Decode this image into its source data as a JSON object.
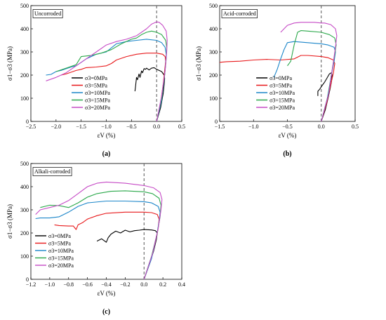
{
  "chart_data": [
    {
      "type": "line",
      "panel_label": "(a)",
      "annotation": "Uncorroded",
      "xlabel": "εV (%)",
      "ylabel": "σ1−σ3 (MPa)",
      "xlim": [
        -2.5,
        0.5
      ],
      "ylim": [
        0,
        500
      ],
      "xticks": [
        "−2.5",
        "−2.0",
        "−1.5",
        "−1.0",
        "−0.5",
        "0.0",
        "0.5"
      ],
      "xtick_values": [
        -2.5,
        -2.0,
        -1.5,
        -1.0,
        -0.5,
        0.0,
        0.5
      ],
      "yticks": [
        "0",
        "100",
        "200",
        "300",
        "400",
        "500"
      ],
      "ytick_values": [
        0,
        100,
        200,
        300,
        400,
        500
      ],
      "reference_line_x": 0,
      "legend_position": "bottom-center",
      "series": [
        {
          "name": "σ3=0MPa",
          "color": "#000000",
          "x": [
            0.0,
            0.08,
            0.13,
            0.15,
            0.16,
            0.15,
            0.1,
            0.05,
            0.0,
            -0.05,
            -0.1,
            -0.15,
            -0.2,
            -0.22,
            -0.25,
            -0.28,
            -0.3,
            -0.33,
            -0.35,
            -0.38,
            -0.4,
            -0.42,
            -0.43
          ],
          "y": [
            0,
            60,
            120,
            160,
            185,
            200,
            215,
            220,
            225,
            232,
            230,
            222,
            230,
            225,
            228,
            210,
            218,
            190,
            205,
            180,
            190,
            150,
            130
          ]
        },
        {
          "name": "σ3=5MPa",
          "color": "#e8191b",
          "x": [
            0.0,
            0.08,
            0.13,
            0.16,
            0.18,
            0.17,
            0.12,
            0.0,
            -0.2,
            -0.4,
            -0.6,
            -0.8,
            -0.9,
            -1.0,
            -1.2,
            -1.4,
            -1.5,
            -1.6,
            -1.8,
            -1.9
          ],
          "y": [
            0,
            80,
            160,
            220,
            260,
            280,
            290,
            295,
            295,
            290,
            280,
            265,
            250,
            240,
            235,
            232,
            225,
            220,
            205,
            200
          ]
        },
        {
          "name": "σ3=10MPa",
          "color": "#1a85c9",
          "x": [
            0.0,
            0.1,
            0.15,
            0.18,
            0.19,
            0.17,
            0.1,
            0.0,
            -0.2,
            -0.4,
            -0.6,
            -0.8,
            -1.0,
            -1.2,
            -1.4,
            -1.6,
            -1.7,
            -1.9,
            -2.0,
            -2.1,
            -2.2
          ],
          "y": [
            0,
            90,
            180,
            250,
            290,
            320,
            340,
            350,
            355,
            350,
            345,
            335,
            300,
            290,
            270,
            240,
            235,
            220,
            215,
            203,
            200
          ]
        },
        {
          "name": "σ3=15MPa",
          "color": "#2aa84a",
          "x": [
            0.0,
            0.1,
            0.16,
            0.19,
            0.2,
            0.18,
            0.1,
            0.0,
            -0.1,
            -0.2,
            -0.3,
            -0.4,
            -0.5,
            -0.7,
            -0.9,
            -1.1,
            -1.3,
            -1.5,
            -1.6,
            -1.8,
            -2.0
          ],
          "y": [
            0,
            100,
            200,
            270,
            320,
            350,
            375,
            385,
            390,
            385,
            375,
            360,
            355,
            335,
            310,
            295,
            285,
            280,
            245,
            230,
            215
          ]
        },
        {
          "name": "σ3=20MPa",
          "color": "#c64bc6",
          "x": [
            0.0,
            0.1,
            0.17,
            0.2,
            0.21,
            0.19,
            0.12,
            0.05,
            0.0,
            -0.05,
            -0.1,
            -0.2,
            -0.4,
            -0.6,
            -0.8,
            -1.0,
            -1.2,
            -1.4,
            -1.6,
            -1.8,
            -2.0,
            -2.2
          ],
          "y": [
            0,
            110,
            220,
            300,
            350,
            390,
            415,
            428,
            430,
            425,
            420,
            400,
            370,
            355,
            345,
            330,
            300,
            270,
            240,
            210,
            190,
            175
          ]
        }
      ]
    },
    {
      "type": "line",
      "panel_label": "(b)",
      "annotation": "Acid-corroded",
      "xlabel": "εV (%)",
      "ylabel": "σ1−σ3 (MPa)",
      "xlim": [
        -1.5,
        0.5
      ],
      "ylim": [
        0,
        500
      ],
      "xticks": [
        "−1.5",
        "−1.0",
        "−0.5",
        "0.0",
        "0.5"
      ],
      "xtick_values": [
        -1.5,
        -1.0,
        -0.5,
        0.0,
        0.5
      ],
      "yticks": [
        "0",
        "100",
        "200",
        "300",
        "400",
        "500"
      ],
      "ytick_values": [
        0,
        100,
        200,
        300,
        400,
        500
      ],
      "reference_line_x": 0,
      "legend_position": "bottom-center",
      "series": [
        {
          "name": "σ3=0MPa",
          "color": "#000000",
          "x": [
            0.0,
            0.06,
            0.1,
            0.13,
            0.15,
            0.16,
            0.15,
            0.12,
            0.1,
            0.08,
            0.05,
            0.0,
            -0.02,
            -0.05,
            -0.05
          ],
          "y": [
            0,
            50,
            100,
            140,
            170,
            200,
            210,
            205,
            195,
            185,
            170,
            150,
            140,
            130,
            110
          ]
        },
        {
          "name": "σ3=5MPa",
          "color": "#e8191b",
          "x": [
            0.0,
            0.08,
            0.14,
            0.18,
            0.2,
            0.18,
            0.1,
            0.0,
            -0.2,
            -0.3,
            -0.4,
            -0.6,
            -0.8,
            -1.0,
            -1.2,
            -1.4,
            -1.5
          ],
          "y": [
            0,
            80,
            160,
            210,
            250,
            265,
            275,
            280,
            285,
            285,
            270,
            265,
            268,
            265,
            260,
            258,
            255
          ]
        },
        {
          "name": "σ3=10MPa",
          "color": "#1a85c9",
          "x": [
            0.0,
            0.09,
            0.15,
            0.19,
            0.21,
            0.19,
            0.1,
            0.0,
            -0.2,
            -0.4,
            -0.5,
            -0.55,
            -0.6,
            -0.65,
            -0.7
          ],
          "y": [
            0,
            100,
            200,
            260,
            300,
            320,
            330,
            335,
            340,
            345,
            340,
            310,
            270,
            225,
            190
          ]
        },
        {
          "name": "σ3=15MPa",
          "color": "#2aa84a",
          "x": [
            0.0,
            0.1,
            0.16,
            0.2,
            0.22,
            0.2,
            0.12,
            0.0,
            -0.2,
            -0.3,
            -0.35,
            -0.4,
            -0.45,
            -0.5
          ],
          "y": [
            0,
            110,
            220,
            290,
            330,
            360,
            375,
            385,
            390,
            392,
            385,
            330,
            260,
            240
          ]
        },
        {
          "name": "σ3=20MPa",
          "color": "#c64bc6",
          "x": [
            0.0,
            0.11,
            0.17,
            0.21,
            0.23,
            0.21,
            0.14,
            0.05,
            0.0,
            -0.1,
            -0.2,
            -0.3,
            -0.4,
            -0.5,
            -0.6
          ],
          "y": [
            0,
            120,
            240,
            320,
            370,
            400,
            418,
            425,
            425,
            428,
            428,
            428,
            425,
            415,
            385
          ]
        }
      ]
    },
    {
      "type": "line",
      "panel_label": "(c)",
      "annotation": "Alkali-corroded",
      "xlabel": "εV (%)",
      "ylabel": "σ1−σ3 (MPa)",
      "xlim": [
        -1.2,
        0.4
      ],
      "ylim": [
        0,
        500
      ],
      "xticks": [
        "−1.2",
        "−1.0",
        "−0.8",
        "−0.6",
        "−0.4",
        "−0.2",
        "0.0",
        "0.2",
        "0.4"
      ],
      "xtick_values": [
        -1.2,
        -1.0,
        -0.8,
        -0.6,
        -0.4,
        -0.2,
        0.0,
        0.2,
        0.4
      ],
      "yticks": [
        "0",
        "100",
        "200",
        "300",
        "400",
        "500"
      ],
      "ytick_values": [
        0,
        100,
        200,
        300,
        400,
        500
      ],
      "reference_line_x": 0,
      "legend_position": "bottom-left",
      "series": [
        {
          "name": "σ3=0MPa",
          "color": "#000000",
          "x": [
            0.0,
            0.05,
            0.1,
            0.13,
            0.14,
            0.12,
            0.08,
            0.0,
            -0.05,
            -0.1,
            -0.15,
            -0.2,
            -0.25,
            -0.3,
            -0.35,
            -0.38,
            -0.4,
            -0.45,
            -0.5
          ],
          "y": [
            0,
            60,
            120,
            170,
            200,
            210,
            213,
            215,
            212,
            210,
            205,
            212,
            200,
            208,
            195,
            180,
            160,
            175,
            165
          ]
        },
        {
          "name": "σ3=5MPa",
          "color": "#e8191b",
          "x": [
            0.0,
            0.07,
            0.12,
            0.15,
            0.16,
            0.14,
            0.08,
            0.0,
            -0.2,
            -0.4,
            -0.5,
            -0.6,
            -0.65,
            -0.7,
            -0.72,
            -0.75,
            -0.8,
            -0.9,
            -0.95
          ],
          "y": [
            0,
            80,
            160,
            220,
            260,
            280,
            288,
            290,
            290,
            285,
            275,
            260,
            245,
            235,
            215,
            230,
            230,
            232,
            235
          ]
        },
        {
          "name": "σ3=10MPa",
          "color": "#1a85c9",
          "x": [
            0.0,
            0.08,
            0.13,
            0.16,
            0.17,
            0.15,
            0.08,
            0.0,
            -0.2,
            -0.4,
            -0.6,
            -0.7,
            -0.8,
            -0.9,
            -1.0,
            -1.1,
            -1.15
          ],
          "y": [
            0,
            90,
            180,
            250,
            290,
            315,
            330,
            335,
            338,
            338,
            330,
            315,
            290,
            270,
            265,
            265,
            262
          ]
        },
        {
          "name": "σ3=15MPa",
          "color": "#2aa84a",
          "x": [
            0.0,
            0.08,
            0.14,
            0.17,
            0.18,
            0.16,
            0.09,
            0.0,
            -0.2,
            -0.35,
            -0.5,
            -0.6,
            -0.7,
            -0.8,
            -0.9,
            -1.0,
            -1.1
          ],
          "y": [
            0,
            100,
            200,
            270,
            320,
            350,
            370,
            378,
            382,
            380,
            370,
            355,
            330,
            310,
            318,
            320,
            310
          ]
        },
        {
          "name": "σ3=20MPa",
          "color": "#c64bc6",
          "x": [
            0.0,
            0.09,
            0.15,
            0.18,
            0.19,
            0.17,
            0.1,
            0.0,
            -0.2,
            -0.4,
            -0.5,
            -0.6,
            -0.7,
            -0.8,
            -0.9,
            -1.0,
            -1.1,
            -1.15
          ],
          "y": [
            0,
            110,
            220,
            300,
            345,
            375,
            395,
            405,
            415,
            420,
            415,
            400,
            370,
            340,
            320,
            310,
            300,
            280
          ]
        }
      ]
    }
  ]
}
